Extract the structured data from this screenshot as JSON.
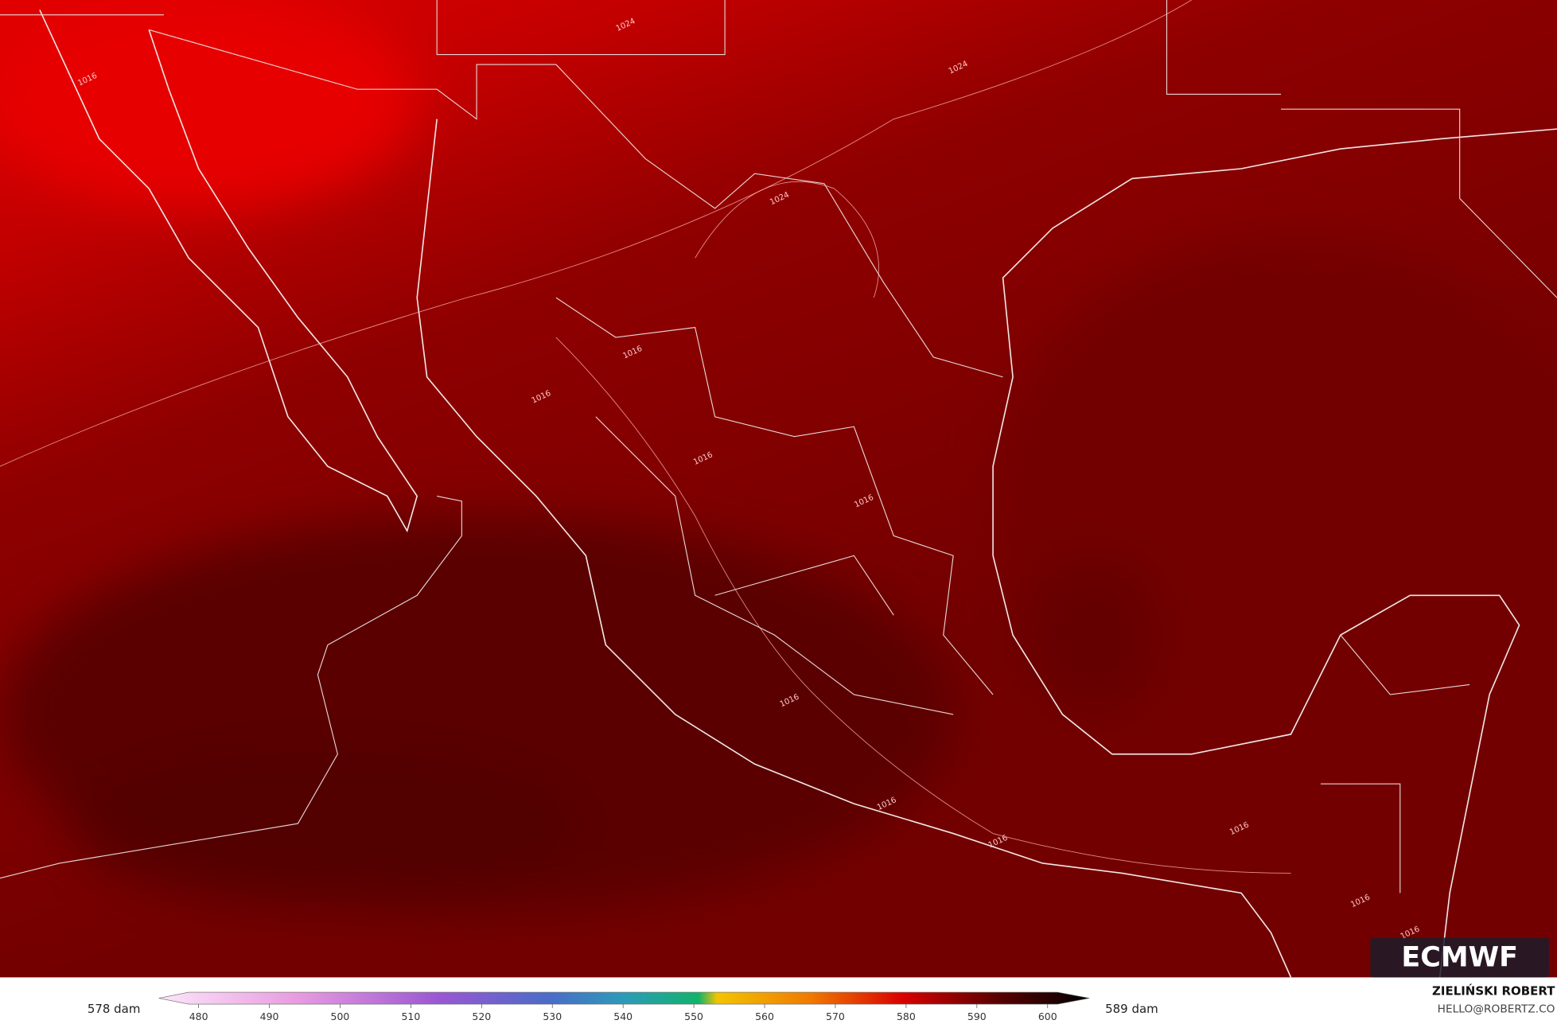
{
  "map": {
    "contour_labels": [
      "1016",
      "1024",
      "1024",
      "1024",
      "1016",
      "1016",
      "1016",
      "1016",
      "1016",
      "1016",
      "1016",
      "1016",
      "1016",
      "1016"
    ]
  },
  "logo": "ECMWF",
  "colorbar": {
    "min_label": "578 dam",
    "max_label": "589 dam",
    "ticks": [
      480,
      490,
      500,
      510,
      520,
      530,
      540,
      550,
      560,
      570,
      580,
      590,
      600
    ]
  },
  "credit": {
    "name": "ZIELIŃSKI ROBERT",
    "contact": "HELLO@ROBERTZ.CO"
  }
}
